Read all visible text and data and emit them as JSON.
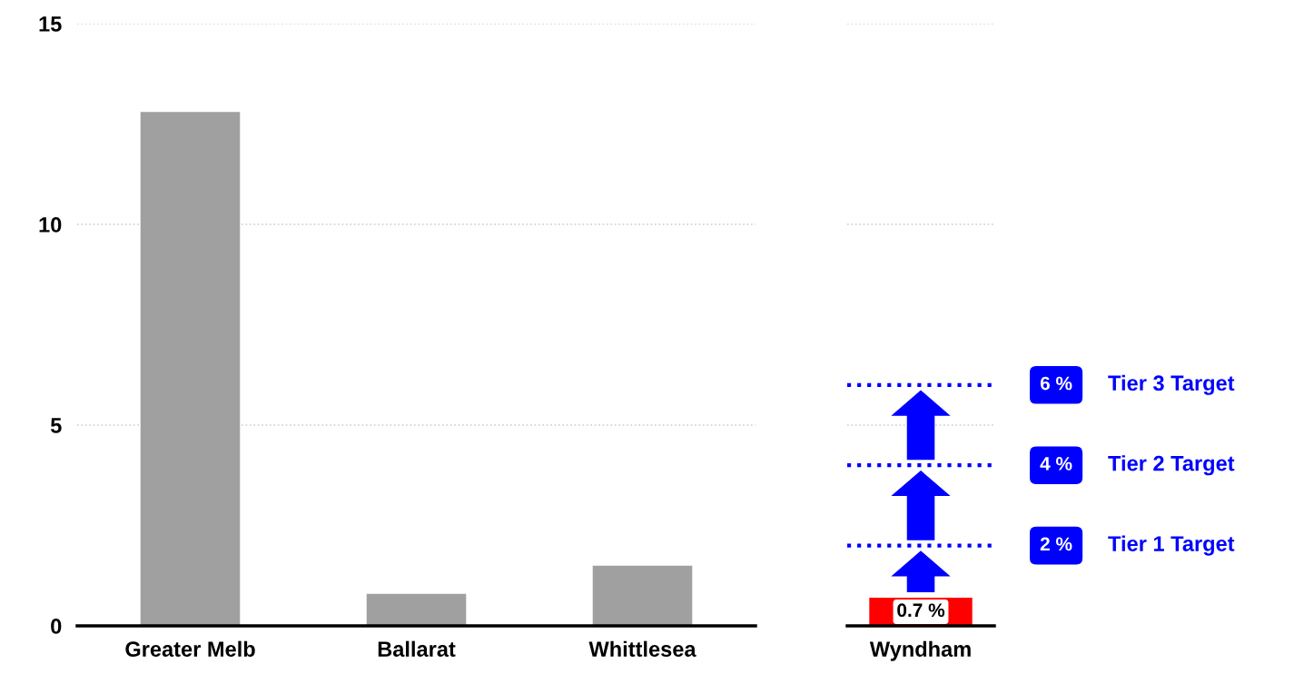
{
  "chart_data": [
    {
      "type": "bar",
      "categories": [
        "Greater Melb",
        "Ballarat",
        "Whittlesea"
      ],
      "values": [
        12.8,
        0.8,
        1.5
      ],
      "color": "#a0a0a0",
      "ylim": [
        0,
        15
      ],
      "yticks": [
        0,
        5,
        10,
        15
      ],
      "grid": "y"
    },
    {
      "type": "bar",
      "categories": [
        "Wyndham"
      ],
      "values": [
        0.7
      ],
      "color": "#ff0000",
      "value_labels": [
        "0.7 %"
      ],
      "ylim": [
        0,
        15
      ],
      "yticks": [
        0,
        5,
        10,
        15
      ],
      "grid": "y",
      "tick_labels": "x",
      "ref_lines": [
        {
          "axis": "y",
          "value": 2,
          "label": "Tier 1 Target",
          "color": "#0000ff",
          "line_style": "dotted"
        },
        {
          "axis": "y",
          "value": 4,
          "label": "Tier 2 Target",
          "color": "#0000ff",
          "line_style": "dotted"
        },
        {
          "axis": "y",
          "value": 6,
          "label": "Tier 3 Target",
          "color": "#0000ff",
          "line_style": "dotted"
        }
      ],
      "annotations": [
        "2 %",
        "4 %",
        "6 %"
      ]
    }
  ]
}
